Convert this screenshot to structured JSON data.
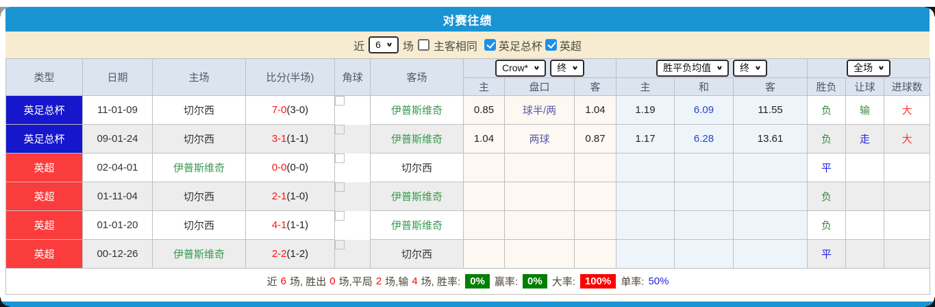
{
  "title": "对赛往绩",
  "filter": {
    "near_label": "近",
    "count": "6",
    "games_label": "场",
    "same_venue_label": "主客相同",
    "same_venue_checked": false,
    "facup_label": "英足总杯",
    "facup_checked": true,
    "epl_label": "英超",
    "epl_checked": true
  },
  "table": {
    "columns": [
      "类型",
      "日期",
      "主场",
      "比分(半场)",
      "角球",
      "客场"
    ],
    "selectors": {
      "bookmaker": "Crow*",
      "bookmaker_period": "终",
      "avg": "胜平负均值",
      "avg_period": "终",
      "scope": "全场"
    },
    "sub_columns": [
      "主",
      "盘口",
      "客",
      "主",
      "和",
      "客",
      "胜负",
      "让球",
      "进球数"
    ],
    "rows": [
      {
        "type": "英足总杯",
        "type_color": "blue",
        "date": "11-01-09",
        "home": "切尔西",
        "home_color": "dark",
        "score": "7-0",
        "half": "(3-0)",
        "corner": "",
        "away": "伊普斯维奇",
        "away_color": "green",
        "asian_home": "0.85",
        "asian_line": "球半/两",
        "asian_away": "1.04",
        "euro_home": "1.19",
        "euro_draw": "6.09",
        "euro_away": "11.55",
        "result": "负",
        "result_color": "green",
        "handicap_result": "输",
        "handicap_color": "green",
        "goals": "大",
        "goals_color": "red"
      },
      {
        "type": "英足总杯",
        "type_color": "blue",
        "date": "09-01-24",
        "home": "切尔西",
        "home_color": "dark",
        "score": "3-1",
        "half": "(1-1)",
        "corner": "",
        "away": "伊普斯维奇",
        "away_color": "green",
        "asian_home": "1.04",
        "asian_line": "两球",
        "asian_away": "0.87",
        "euro_home": "1.17",
        "euro_draw": "6.28",
        "euro_away": "13.61",
        "result": "负",
        "result_color": "green",
        "handicap_result": "走",
        "handicap_color": "blue",
        "goals": "大",
        "goals_color": "red"
      },
      {
        "type": "英超",
        "type_color": "red",
        "date": "02-04-01",
        "home": "伊普斯维奇",
        "home_color": "green",
        "score": "0-0",
        "half": "(0-0)",
        "corner": "",
        "away": "切尔西",
        "away_color": "dark",
        "asian_home": "",
        "asian_line": "",
        "asian_away": "",
        "euro_home": "",
        "euro_draw": "",
        "euro_away": "",
        "result": "平",
        "result_color": "blue",
        "handicap_result": "",
        "handicap_color": "none",
        "goals": "",
        "goals_color": "none"
      },
      {
        "type": "英超",
        "type_color": "red",
        "date": "01-11-04",
        "home": "切尔西",
        "home_color": "dark",
        "score": "2-1",
        "half": "(1-0)",
        "corner": "",
        "away": "伊普斯维奇",
        "away_color": "green",
        "asian_home": "",
        "asian_line": "",
        "asian_away": "",
        "euro_home": "",
        "euro_draw": "",
        "euro_away": "",
        "result": "负",
        "result_color": "green",
        "handicap_result": "",
        "handicap_color": "none",
        "goals": "",
        "goals_color": "none"
      },
      {
        "type": "英超",
        "type_color": "red",
        "date": "01-01-20",
        "home": "切尔西",
        "home_color": "dark",
        "score": "4-1",
        "half": "(1-1)",
        "corner": "",
        "away": "伊普斯维奇",
        "away_color": "green",
        "asian_home": "",
        "asian_line": "",
        "asian_away": "",
        "euro_home": "",
        "euro_draw": "",
        "euro_away": "",
        "result": "负",
        "result_color": "green",
        "handicap_result": "",
        "handicap_color": "none",
        "goals": "",
        "goals_color": "none"
      },
      {
        "type": "英超",
        "type_color": "red",
        "date": "00-12-26",
        "home": "伊普斯维奇",
        "home_color": "green",
        "score": "2-2",
        "half": "(1-2)",
        "corner": "",
        "away": "切尔西",
        "away_color": "dark",
        "asian_home": "",
        "asian_line": "",
        "asian_away": "",
        "euro_home": "",
        "euro_draw": "",
        "euro_away": "",
        "result": "平",
        "result_color": "blue",
        "handicap_result": "",
        "handicap_color": "none",
        "goals": "",
        "goals_color": "none"
      }
    ]
  },
  "summary": {
    "s1": "近",
    "n1": "6",
    "s2": "场, 胜出",
    "n2": "0",
    "s3": "场,平局",
    "n3": "2",
    "s4": "场,输",
    "n4": "4",
    "s5": "场, 胜率:",
    "win_rate": "0%",
    "s6": "赢率:",
    "odds_win_rate": "0%",
    "s7": "大率:",
    "big_rate": "100%",
    "s8": "单率:",
    "single_rate": "50%"
  },
  "colors": {
    "header_blue": "#1a94d3",
    "filter_bg": "#f7ecd0",
    "thead_bg": "#dce4f0",
    "thead_text": "#4f5866",
    "border": "#bfbfbf",
    "outer_border": "#e0b9b9",
    "row_alt": "#ededed",
    "asian_bg": "#fdf8f2",
    "euro_bg": "#eef5fa",
    "comp_blue": "#1616cd",
    "comp_red": "#fb3c3c",
    "team_green": "#389a50",
    "team_dark": "#333333",
    "score_red": "#ff1111",
    "half_dark": "#222222",
    "slate": "#5a5aaa",
    "odds_blue": "#2244cc",
    "res_green": "#3d8b44",
    "res_blue": "#2323dd",
    "res_red": "#ff3333",
    "check_blue": "#1d8fe8",
    "stat_green": "#008000",
    "stat_red": "#ff0000",
    "rate_blue": "#2222dd",
    "num_red": "#ff0000",
    "label_dark": "#4c4639"
  }
}
